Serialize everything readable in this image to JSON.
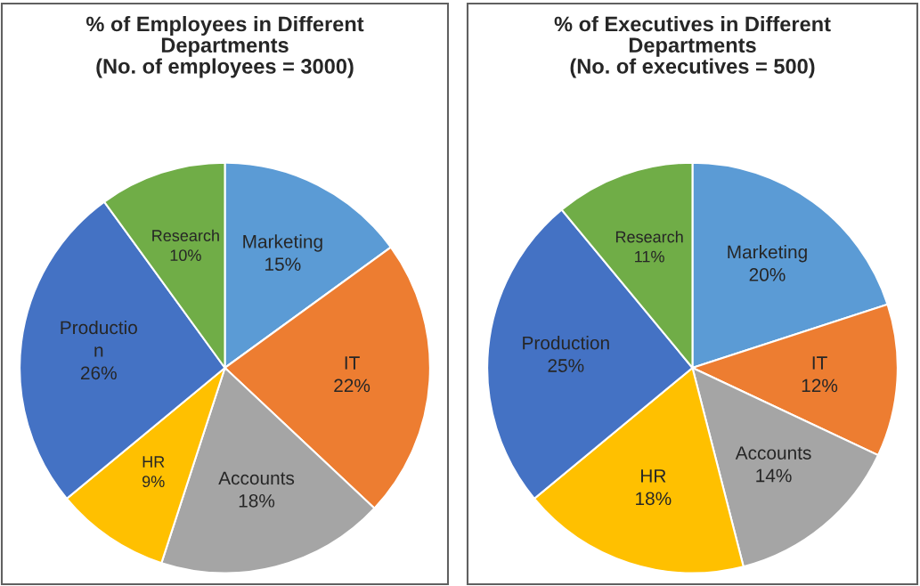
{
  "chart_data": [
    {
      "type": "pie",
      "title": "% of Employees in Different\nDepartments\n(No. of employees = 3000)",
      "categories": [
        "Marketing",
        "IT",
        "Accounts",
        "HR",
        "Productio\nn",
        "Research"
      ],
      "values": [
        15,
        22,
        18,
        9,
        26,
        10
      ],
      "value_labels": [
        "15%",
        "22%",
        "18%",
        "9%",
        "26%",
        "10%"
      ],
      "colors": [
        "#5b9bd5",
        "#ed7d31",
        "#a5a5a5",
        "#ffc000",
        "#4472c4",
        "#70ad47"
      ],
      "legend": false
    },
    {
      "type": "pie",
      "title": "% of Executives in Different\nDepartments\n(No. of executives = 500)",
      "categories": [
        "Marketing",
        "IT",
        "Accounts",
        "HR",
        "Production",
        "Research"
      ],
      "values": [
        20,
        12,
        14,
        18,
        25,
        11
      ],
      "value_labels": [
        "20%",
        "12%",
        "14%",
        "18%",
        "25%",
        "11%"
      ],
      "colors": [
        "#5b9bd5",
        "#ed7d31",
        "#a5a5a5",
        "#ffc000",
        "#4472c4",
        "#70ad47"
      ],
      "legend": false
    }
  ]
}
